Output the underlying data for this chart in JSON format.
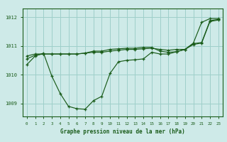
{
  "bg_color": "#ceeae8",
  "grid_color": "#9ecfca",
  "line_color": "#1a5c1a",
  "marker_color": "#1a5c1a",
  "title": "Graphe pression niveau de la mer (hPa)",
  "title_color": "#1a5c1a",
  "xlim": [
    -0.5,
    23.5
  ],
  "ylim": [
    1008.55,
    1012.3
  ],
  "yticks": [
    1009,
    1010,
    1011,
    1012
  ],
  "xticks": [
    0,
    1,
    2,
    3,
    4,
    5,
    6,
    7,
    8,
    9,
    10,
    11,
    12,
    13,
    14,
    15,
    16,
    17,
    18,
    19,
    20,
    21,
    22,
    23
  ],
  "series1_x": [
    0,
    1,
    2,
    3,
    4,
    5,
    6,
    7,
    8,
    9,
    10,
    11,
    12,
    13,
    14,
    15,
    16,
    17,
    18,
    19,
    20,
    21,
    22,
    23
  ],
  "series1_y": [
    1010.35,
    1010.65,
    1010.75,
    1009.95,
    1009.35,
    1008.9,
    1008.82,
    1008.8,
    1009.1,
    1009.25,
    1010.05,
    1010.45,
    1010.5,
    1010.52,
    1010.55,
    1010.78,
    1010.72,
    1010.72,
    1010.8,
    1010.88,
    1011.1,
    1011.82,
    1011.95,
    1011.95
  ],
  "series2_x": [
    0,
    1,
    2,
    3,
    4,
    5,
    6,
    7,
    8,
    9,
    10,
    11,
    12,
    13,
    14,
    15,
    16,
    17,
    18,
    19,
    20,
    21,
    22,
    23
  ],
  "series2_y": [
    1010.65,
    1010.72,
    1010.72,
    1010.72,
    1010.72,
    1010.72,
    1010.72,
    1010.75,
    1010.78,
    1010.78,
    1010.82,
    1010.85,
    1010.88,
    1010.88,
    1010.9,
    1010.92,
    1010.88,
    1010.85,
    1010.88,
    1010.88,
    1011.05,
    1011.1,
    1011.85,
    1011.9
  ],
  "series3_x": [
    0,
    1,
    2,
    3,
    4,
    5,
    6,
    7,
    8,
    9,
    10,
    11,
    12,
    13,
    14,
    15,
    16,
    17,
    18,
    19,
    20,
    21,
    22,
    23
  ],
  "series3_y": [
    1010.55,
    1010.68,
    1010.72,
    1010.72,
    1010.72,
    1010.72,
    1010.72,
    1010.75,
    1010.82,
    1010.82,
    1010.88,
    1010.9,
    1010.92,
    1010.92,
    1010.95,
    1010.95,
    1010.82,
    1010.78,
    1010.8,
    1010.88,
    1011.08,
    1011.12,
    1011.88,
    1011.92
  ]
}
